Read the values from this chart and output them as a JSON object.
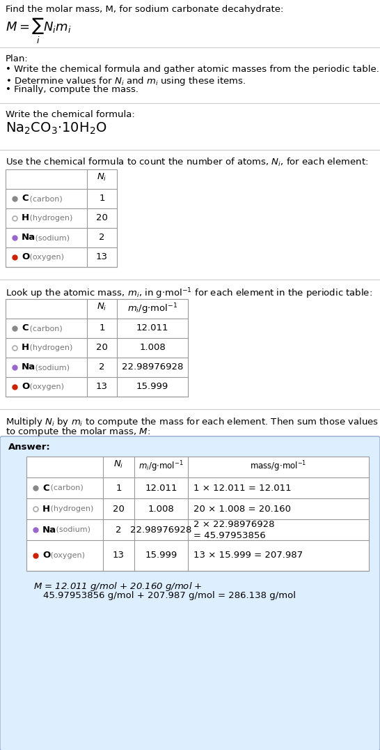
{
  "title_text": "Find the molar mass, M, for sodium carbonate decahydrate:",
  "bg_color": "#ffffff",
  "answer_bg": "#ddeeff",
  "answer_border": "#99aacc",
  "table_border": "#999999",
  "sep_color": "#cccccc",
  "elements": [
    {
      "symbol": "C",
      "name": "carbon",
      "dot_color": "#888888",
      "dot_filled": true,
      "Ni": "1",
      "mi": "12.011",
      "mass_line1": "1 × 12.011 = 12.011",
      "mass_line2": ""
    },
    {
      "symbol": "H",
      "name": "hydrogen",
      "dot_color": "#aaaaaa",
      "dot_filled": false,
      "Ni": "20",
      "mi": "1.008",
      "mass_line1": "20 × 1.008 = 20.160",
      "mass_line2": ""
    },
    {
      "symbol": "Na",
      "name": "sodium",
      "dot_color": "#9966cc",
      "dot_filled": true,
      "Ni": "2",
      "mi": "22.98976928",
      "mass_line1": "2 × 22.98976928",
      "mass_line2": "= 45.97953856"
    },
    {
      "symbol": "O",
      "name": "oxygen",
      "dot_color": "#cc2200",
      "dot_filled": true,
      "Ni": "13",
      "mi": "15.999",
      "mass_line1": "13 × 15.999 = 207.987",
      "mass_line2": ""
    }
  ],
  "font_size": 9.5,
  "formula_font_size": 14,
  "math_font_size": 13
}
